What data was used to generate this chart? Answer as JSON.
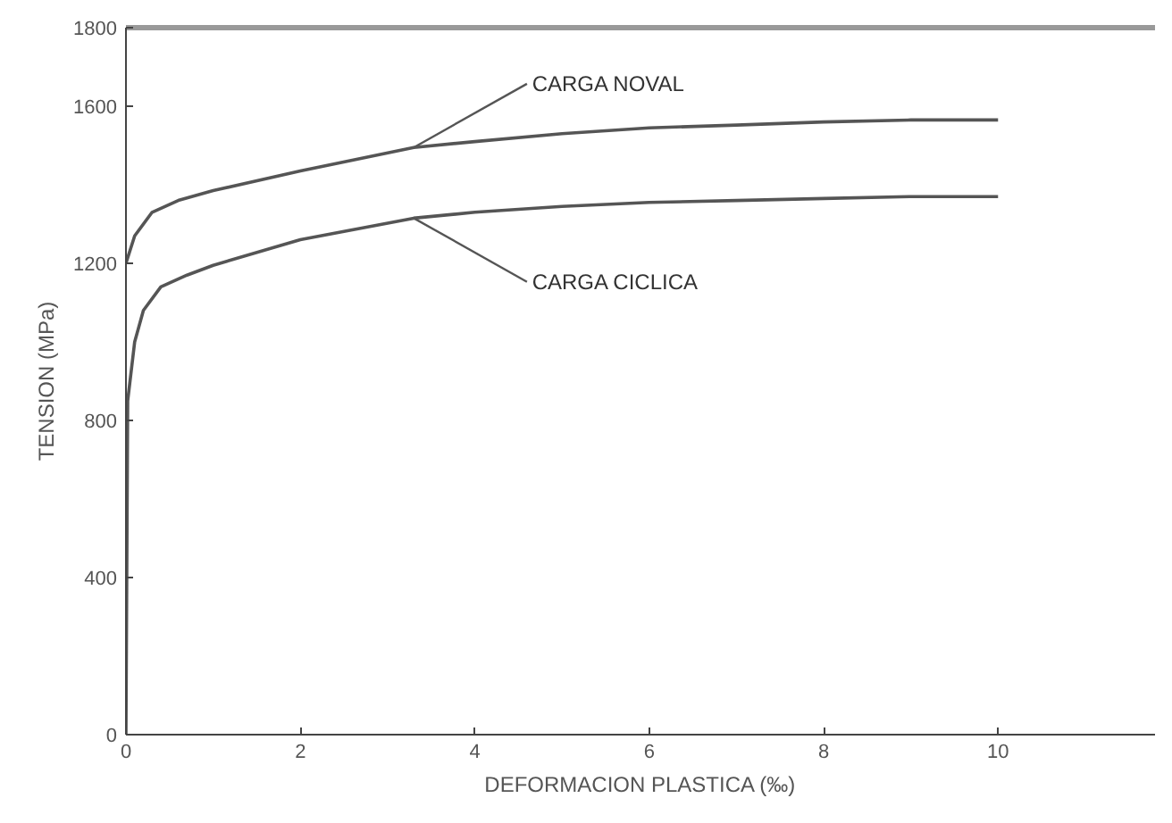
{
  "chart_data": {
    "type": "line",
    "xlabel": "DEFORMACION PLASTICA (‰)",
    "ylabel": "TENSION (MPa)",
    "xlim": [
      0,
      11.8
    ],
    "ylim": [
      0,
      1800
    ],
    "xticks": [
      0,
      2,
      4,
      6,
      8,
      10
    ],
    "yticks": [
      0,
      400,
      800,
      1200,
      1600,
      1800
    ],
    "grid": false,
    "marker": "none",
    "line_style": "solid",
    "series": [
      {
        "color": "#555555",
        "x": [
          0,
          0.1,
          0.3,
          0.6,
          1,
          2,
          3.3,
          4,
          5,
          6,
          7,
          8,
          9,
          10
        ],
        "values": [
          1200,
          1270,
          1330,
          1360,
          1385,
          1435,
          1495,
          1510,
          1530,
          1545,
          1552,
          1560,
          1565,
          1565
        ]
      },
      {
        "color": "#555555",
        "x": [
          0,
          0.02,
          0.1,
          0.2,
          0.4,
          0.7,
          1,
          2,
          3.3,
          4,
          5,
          6,
          7,
          8,
          9,
          10
        ],
        "values": [
          0,
          850,
          1000,
          1080,
          1140,
          1170,
          1195,
          1260,
          1315,
          1330,
          1345,
          1355,
          1360,
          1365,
          1370,
          1370
        ]
      }
    ],
    "annotations": [
      {
        "text": "CARGA NOVAL",
        "x": 3.3,
        "y": 1495
      },
      {
        "text": "CARGA CICLICA",
        "x": 3.3,
        "y": 1315
      }
    ]
  }
}
